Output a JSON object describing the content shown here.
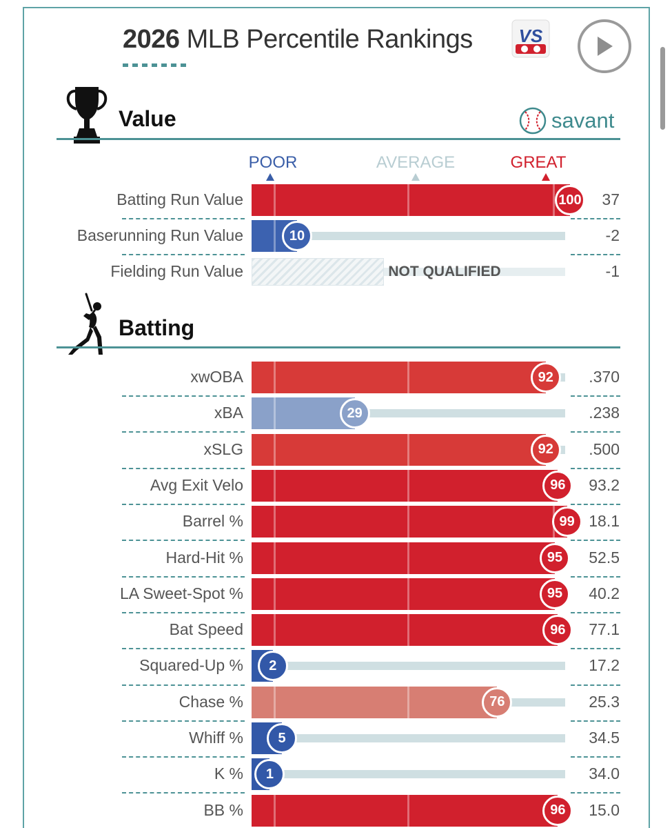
{
  "header": {
    "title_bold": "2026",
    "title_rest": " MLB Percentile Rankings",
    "logo_text": "VS"
  },
  "value_section": {
    "title": "Value",
    "brand": "savant",
    "scale": {
      "poor": "POOR",
      "average": "AVERAGE",
      "great": "GREAT"
    }
  },
  "batting_section": {
    "title": "Batting"
  },
  "colors": {
    "accent": "#4c9295",
    "great": "#d0212e",
    "poor": "#3a5ea8",
    "average": "#b8cdd2",
    "track": "#cfdfe2"
  },
  "chart_data": [
    {
      "type": "bar",
      "title": "Value",
      "orientation": "horizontal",
      "percentile_range": [
        0,
        100
      ],
      "categories": [
        "Batting Run Value",
        "Baserunning Run Value",
        "Fielding Run Value"
      ],
      "percentiles": [
        100,
        10,
        null
      ],
      "stat_values": [
        "37",
        "-2",
        "-1"
      ],
      "colors": [
        "#d1202d",
        "#3c62b0",
        null
      ],
      "not_qualified_label": "NOT QUALIFIED"
    },
    {
      "type": "bar",
      "title": "Batting",
      "orientation": "horizontal",
      "percentile_range": [
        0,
        100
      ],
      "categories": [
        "xwOBA",
        "xBA",
        "xSLG",
        "Avg Exit Velo",
        "Barrel %",
        "Hard-Hit %",
        "LA Sweet-Spot %",
        "Bat Speed",
        "Squared-Up %",
        "Chase %",
        "Whiff %",
        "K %",
        "BB %"
      ],
      "percentiles": [
        92,
        29,
        92,
        96,
        99,
        95,
        95,
        96,
        2,
        76,
        5,
        1,
        96
      ],
      "stat_values": [
        ".370",
        ".238",
        ".500",
        "93.2",
        "18.1",
        "52.5",
        "40.2",
        "77.1",
        "17.2",
        "25.3",
        "34.5",
        "34.0",
        "15.0"
      ],
      "colors": [
        "#d73a38",
        "#8aa1c9",
        "#d73a38",
        "#d1202d",
        "#d1202d",
        "#d1202d",
        "#d1202d",
        "#d1202d",
        "#3258a8",
        "#d77e73",
        "#3258a8",
        "#3258a8",
        "#d1202d"
      ]
    }
  ]
}
